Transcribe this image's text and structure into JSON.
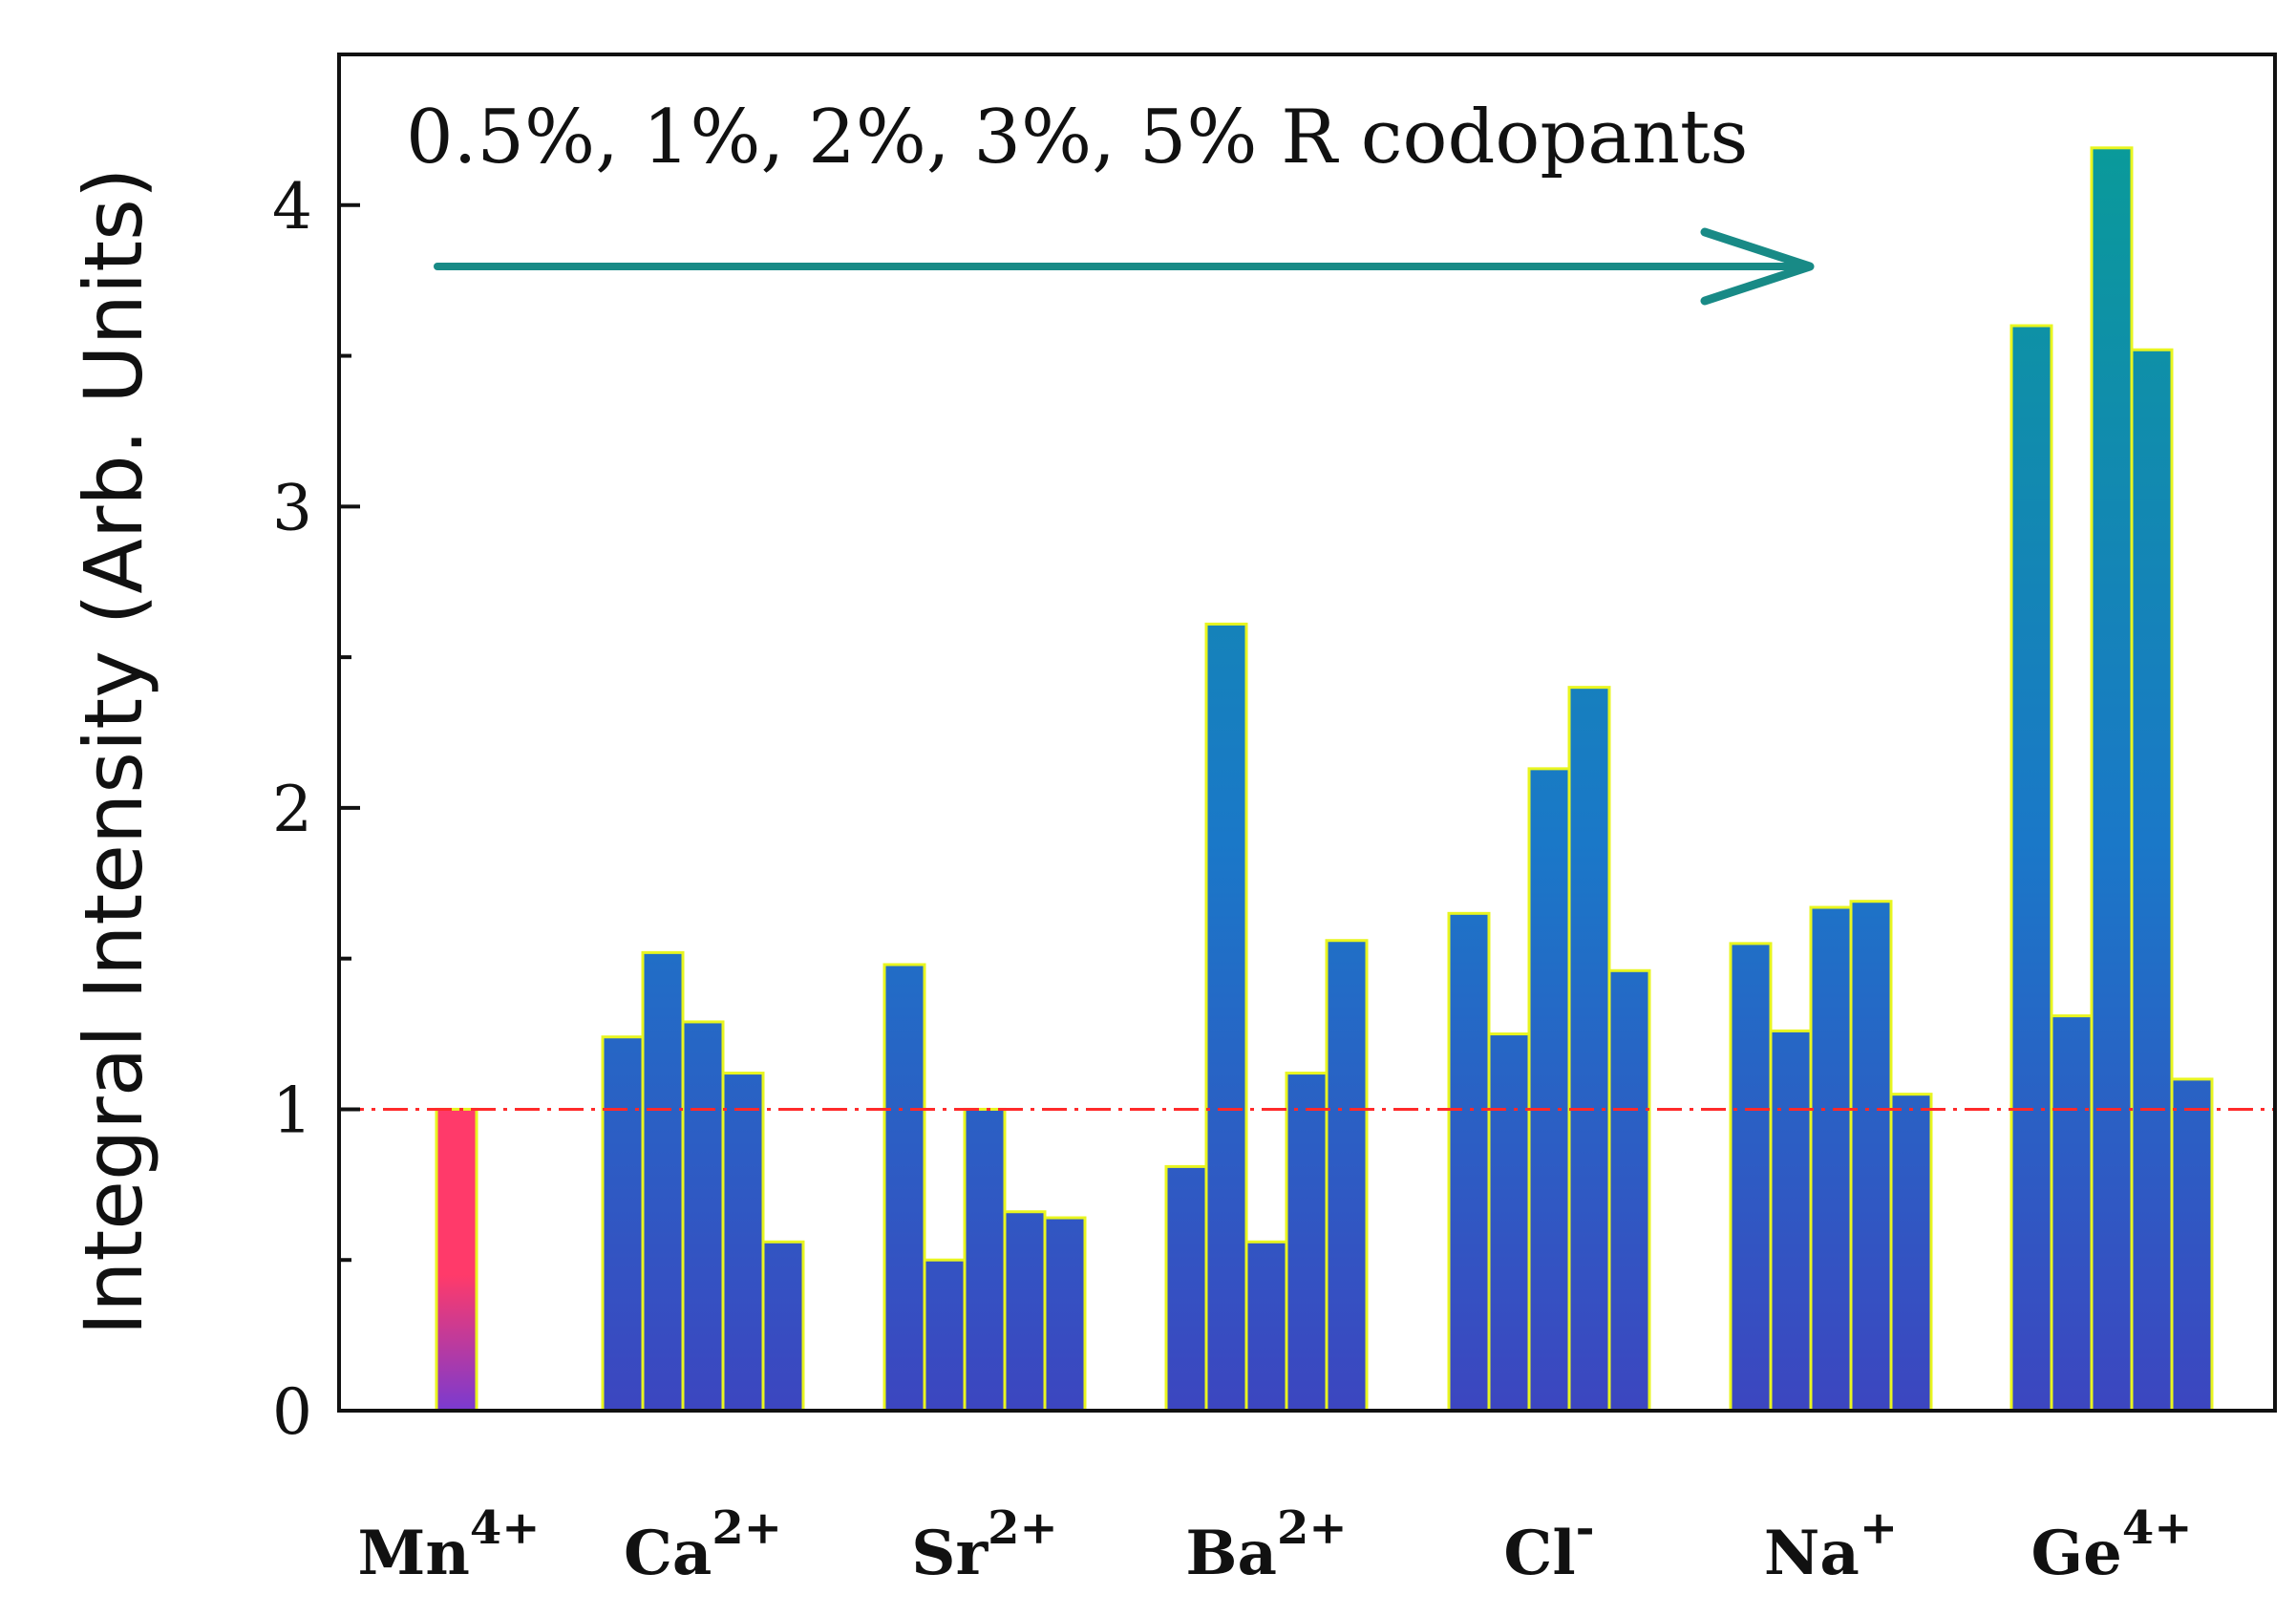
{
  "chart_data": {
    "type": "bar",
    "title": "",
    "xlabel": "",
    "ylabel": "Integral Intensity (Arb. Units)",
    "ylim": [
      0,
      4.5
    ],
    "yticks": [
      0,
      1,
      2,
      3,
      4
    ],
    "annotation": "0.5%, 1%, 2%, 3%, 5% R codopants",
    "reference_line": {
      "y": 1,
      "color": "#ff2a2a",
      "style": "dash-dot"
    },
    "colors": {
      "bar_top": "#0a9a9a",
      "bar_mid": "#1a78c8",
      "bar_bottom": "#3c46c0",
      "bar_edge": "#e8f520",
      "ref_top": "#ff3a6a",
      "ref_bottom": "#7a3ad0",
      "arrow": "#188a86"
    },
    "groups": [
      {
        "ion": "Mn",
        "charge": "4+",
        "values": [
          1.0
        ],
        "reference": true
      },
      {
        "ion": "Ca",
        "charge": "2+",
        "values": [
          1.24,
          1.52,
          1.29,
          1.12,
          0.56
        ]
      },
      {
        "ion": "Sr",
        "charge": "2+",
        "values": [
          1.48,
          0.5,
          1.0,
          0.66,
          0.64
        ]
      },
      {
        "ion": "Ba",
        "charge": "2+",
        "values": [
          0.81,
          2.61,
          0.56,
          1.12,
          1.56
        ]
      },
      {
        "ion": "Cl",
        "charge": "-",
        "values": [
          1.65,
          1.25,
          2.13,
          2.4,
          1.46
        ]
      },
      {
        "ion": "Na",
        "charge": "+",
        "values": [
          1.55,
          1.26,
          1.67,
          1.69,
          1.05
        ]
      },
      {
        "ion": "Ge",
        "charge": "4+",
        "values": [
          3.6,
          1.31,
          4.19,
          3.52,
          1.1
        ]
      }
    ]
  }
}
